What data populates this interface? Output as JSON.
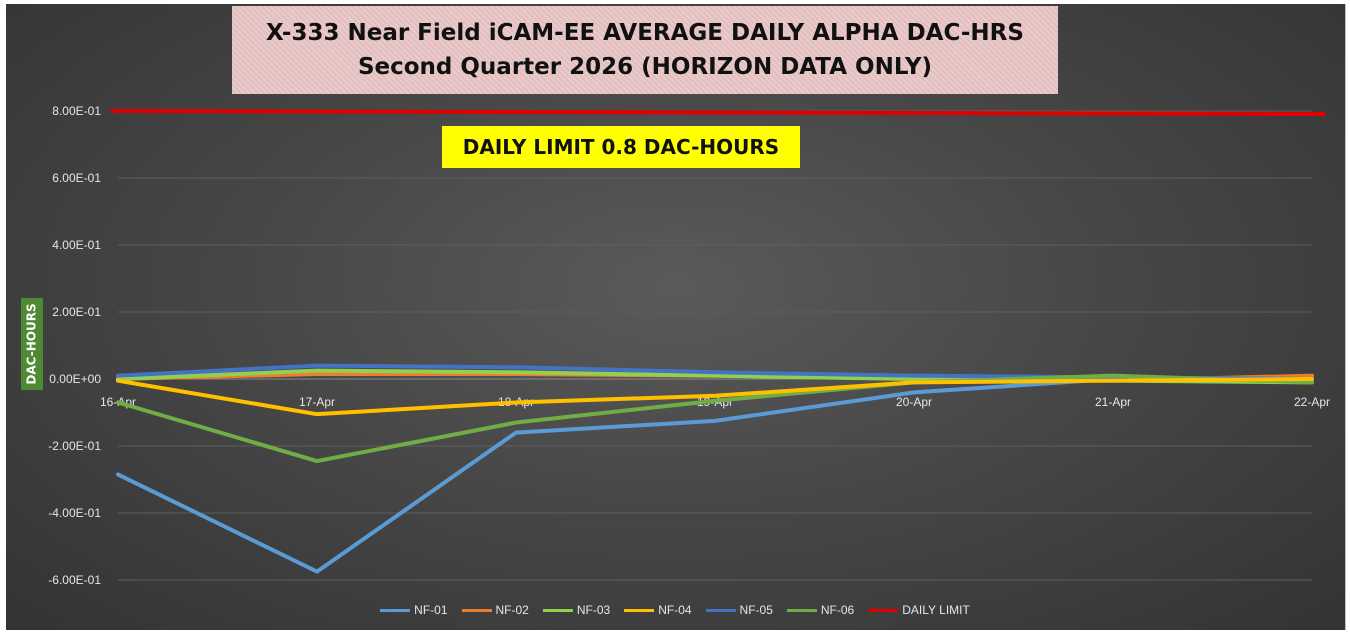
{
  "chart_data": {
    "type": "line",
    "title": [
      "X-333 Near Field iCAM-EE AVERAGE DAILY ALPHA DAC-HRS",
      "Second Quarter 2026 (HORIZON DATA ONLY)"
    ],
    "ylabel": "DAC-HOURS",
    "annotation": "DAILY LIMIT 0.8 DAC-HOURS",
    "ylim": [
      -0.6,
      0.8
    ],
    "yticks": [
      0.8,
      0.6,
      0.4,
      0.2,
      0.0,
      -0.2,
      -0.4,
      -0.6
    ],
    "yticklabels": [
      "8.00E-01",
      "6.00E-01",
      "4.00E-01",
      "2.00E-01",
      "0.00E+00",
      "-2.00E-01",
      "-4.00E-01",
      "-6.00E-01"
    ],
    "categories": [
      "16-Apr",
      "17-Apr",
      "18-Apr",
      "19-Apr",
      "20-Apr",
      "21-Apr",
      "22-Apr"
    ],
    "grid": true,
    "legend_position": "bottom",
    "series": [
      {
        "name": "NF-01",
        "color": "#5b9bd5",
        "values": [
          -0.285,
          -0.575,
          -0.16,
          -0.125,
          -0.04,
          0.0,
          0.0
        ]
      },
      {
        "name": "NF-02",
        "color": "#ed7d31",
        "values": [
          0.0,
          0.015,
          0.015,
          0.01,
          0.005,
          -0.005,
          0.01
        ]
      },
      {
        "name": "NF-03",
        "color": "#92d050",
        "values": [
          0.0,
          0.025,
          0.02,
          0.01,
          0.0,
          -0.005,
          -0.01
        ]
      },
      {
        "name": "NF-04",
        "color": "#ffc000",
        "values": [
          -0.005,
          -0.105,
          -0.07,
          -0.05,
          -0.01,
          -0.005,
          0.0
        ]
      },
      {
        "name": "NF-05",
        "color": "#4472c4",
        "values": [
          0.01,
          0.04,
          0.035,
          0.02,
          0.01,
          0.005,
          0.0
        ]
      },
      {
        "name": "NF-06",
        "color": "#70ad47",
        "values": [
          -0.07,
          -0.245,
          -0.13,
          -0.065,
          -0.01,
          0.01,
          -0.01
        ]
      },
      {
        "name": "DAILY LIMIT",
        "color": "#e00000",
        "values": [
          0.8,
          0.8,
          0.8,
          0.8,
          0.8,
          0.8,
          0.8
        ]
      }
    ]
  }
}
